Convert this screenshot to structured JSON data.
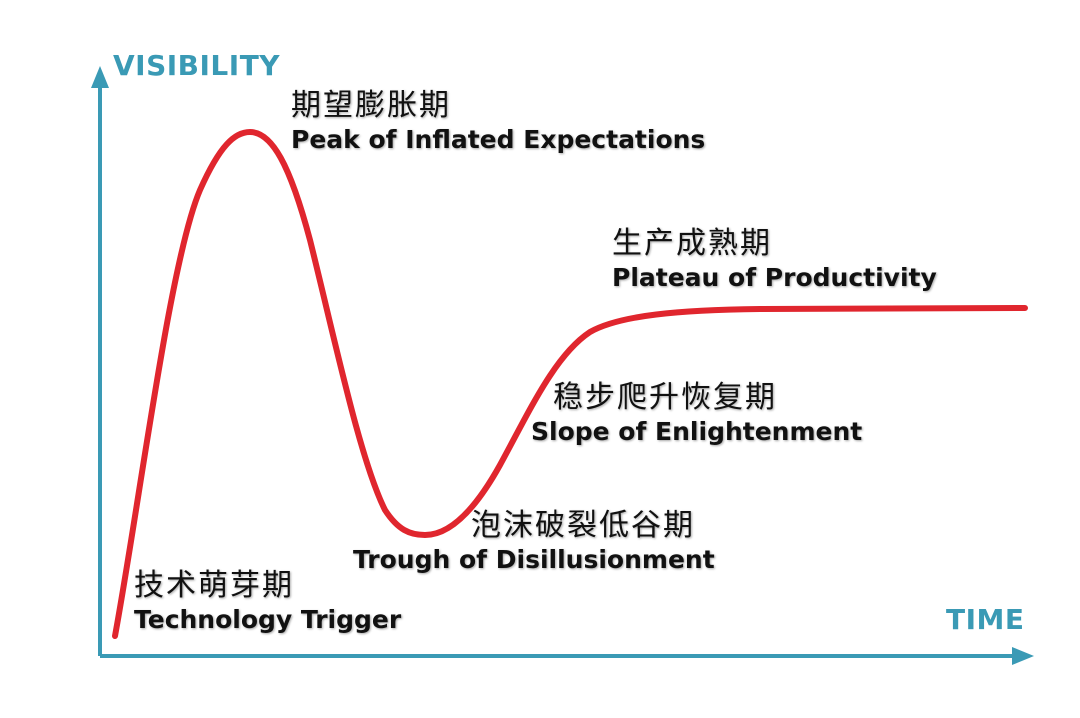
{
  "axes": {
    "y_label": "VISIBILITY",
    "x_label": "TIME",
    "color": "#3a9ab5"
  },
  "curve": {
    "color": "#e0262e"
  },
  "phases": [
    {
      "zh": "技术萌芽期",
      "en": "Technology Trigger"
    },
    {
      "zh": "期望膨胀期",
      "en": "Peak of Inflated Expectations"
    },
    {
      "zh": "泡沫破裂低谷期",
      "en": "Trough of Disillusionment"
    },
    {
      "zh": "稳步爬升恢复期",
      "en": "Slope of Enlightenment"
    },
    {
      "zh": "生产成熟期",
      "en": "Plateau of Productivity"
    }
  ]
}
